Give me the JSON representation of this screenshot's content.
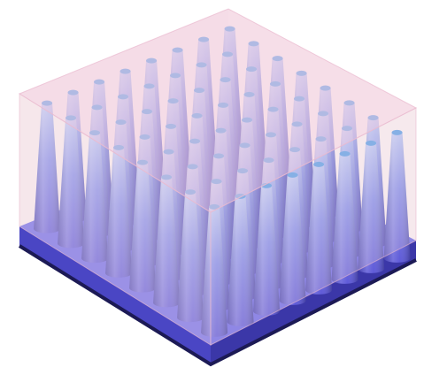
{
  "illustration": {
    "subject": "nanocone-array",
    "grid": {
      "rows": 8,
      "cols": 8
    },
    "colors": {
      "background": "#ffffff",
      "substrate_top": "#6a67e6",
      "substrate_front": "#4a46c4",
      "substrate_side": "#3b37a8",
      "substrate_bottom_edge": "#1c1a55",
      "cone_base": "#5752d6",
      "cone_mid": "#7b86e8",
      "cone_tip": "#b9c6f4",
      "cone_cap": "#5ea0e6",
      "coating_top": "#f4cfe0",
      "coating_front": "#f6dfe6",
      "coating_side": "#efdbe1",
      "coating_edge": "#e9b9cf"
    }
  }
}
